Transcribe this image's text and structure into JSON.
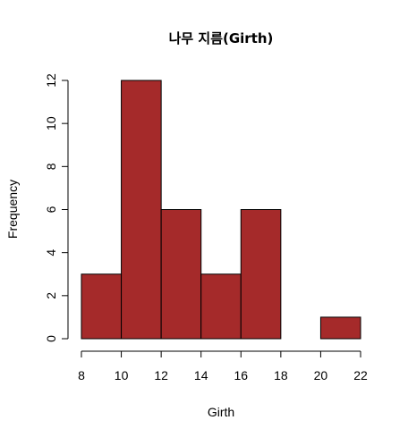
{
  "chart_data": {
    "type": "bar",
    "title": "나무 지름(Girth)",
    "xlabel": "Girth",
    "ylabel": "Frequency",
    "bins": [
      {
        "start": 8,
        "end": 10,
        "count": 3
      },
      {
        "start": 10,
        "end": 12,
        "count": 12
      },
      {
        "start": 12,
        "end": 14,
        "count": 6
      },
      {
        "start": 14,
        "end": 16,
        "count": 3
      },
      {
        "start": 16,
        "end": 18,
        "count": 6
      },
      {
        "start": 18,
        "end": 20,
        "count": 0
      },
      {
        "start": 20,
        "end": 22,
        "count": 1
      }
    ],
    "xlim": [
      8,
      22
    ],
    "ylim": [
      0,
      12
    ],
    "x_ticks": [
      "8",
      "10",
      "12",
      "14",
      "16",
      "18",
      "20",
      "22"
    ],
    "y_ticks": [
      "0",
      "2",
      "4",
      "6",
      "8",
      "10",
      "12"
    ],
    "bar_color": "#a52a2a",
    "grid": false,
    "legend": "none"
  }
}
